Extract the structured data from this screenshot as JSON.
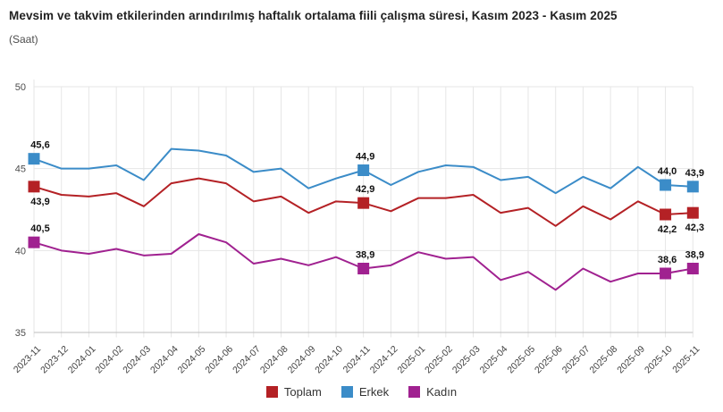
{
  "chart_data": {
    "type": "line",
    "title": "Mevsim ve takvim etkilerinden arındırılmış haftalık ortalama fiili çalışma süresi, Kasım 2023 - Kasım 2025",
    "subtitle": "(Saat)",
    "unit": "Saat",
    "ylim": [
      35,
      50
    ],
    "yticks": [
      35,
      40,
      45,
      50
    ],
    "grid": true,
    "legend_position": "bottom",
    "categories": [
      "2023-11",
      "2023-12",
      "2024-01",
      "2024-02",
      "2024-03",
      "2024-04",
      "2024-05",
      "2024-06",
      "2024-07",
      "2024-08",
      "2024-09",
      "2024-10",
      "2024-11",
      "2024-12",
      "2025-01",
      "2025-02",
      "2025-03",
      "2025-04",
      "2025-05",
      "2025-06",
      "2025-07",
      "2025-08",
      "2025-09",
      "2025-10",
      "2025-11"
    ],
    "series": [
      {
        "name": "Toplam",
        "color": "#b42125",
        "values": [
          43.9,
          43.4,
          43.3,
          43.5,
          42.7,
          44.1,
          44.4,
          44.1,
          43.0,
          43.3,
          42.3,
          43.0,
          42.9,
          42.4,
          43.2,
          43.2,
          43.4,
          42.3,
          42.6,
          41.5,
          42.7,
          41.9,
          43.0,
          42.2,
          42.3
        ],
        "point_labels": [
          {
            "index": 0,
            "text": "43,9",
            "pos": "below"
          },
          {
            "index": 12,
            "text": "42,9",
            "pos": "above"
          },
          {
            "index": 23,
            "text": "42,2",
            "pos": "below"
          },
          {
            "index": 24,
            "text": "42,3",
            "pos": "below"
          }
        ]
      },
      {
        "name": "Erkek",
        "color": "#3b8cc8",
        "values": [
          45.6,
          45.0,
          45.0,
          45.2,
          44.3,
          46.2,
          46.1,
          45.8,
          44.8,
          45.0,
          43.8,
          44.4,
          44.9,
          44.0,
          44.8,
          45.2,
          45.1,
          44.3,
          44.5,
          43.5,
          44.5,
          43.8,
          45.1,
          44.0,
          43.9
        ],
        "point_labels": [
          {
            "index": 0,
            "text": "45,6",
            "pos": "above"
          },
          {
            "index": 12,
            "text": "44,9",
            "pos": "above"
          },
          {
            "index": 23,
            "text": "44,0",
            "pos": "above"
          },
          {
            "index": 24,
            "text": "43,9",
            "pos": "above"
          }
        ]
      },
      {
        "name": "Kadın",
        "color": "#a02190",
        "values": [
          40.5,
          40.0,
          39.8,
          40.1,
          39.7,
          39.8,
          41.0,
          40.5,
          39.2,
          39.5,
          39.1,
          39.6,
          38.9,
          39.1,
          39.9,
          39.5,
          39.6,
          38.2,
          38.7,
          37.6,
          38.9,
          38.1,
          38.6,
          38.6,
          38.9
        ],
        "point_labels": [
          {
            "index": 0,
            "text": "40,5",
            "pos": "above"
          },
          {
            "index": 12,
            "text": "38,9",
            "pos": "above"
          },
          {
            "index": 23,
            "text": "38,6",
            "pos": "above"
          },
          {
            "index": 24,
            "text": "38,9",
            "pos": "above"
          }
        ]
      }
    ]
  }
}
